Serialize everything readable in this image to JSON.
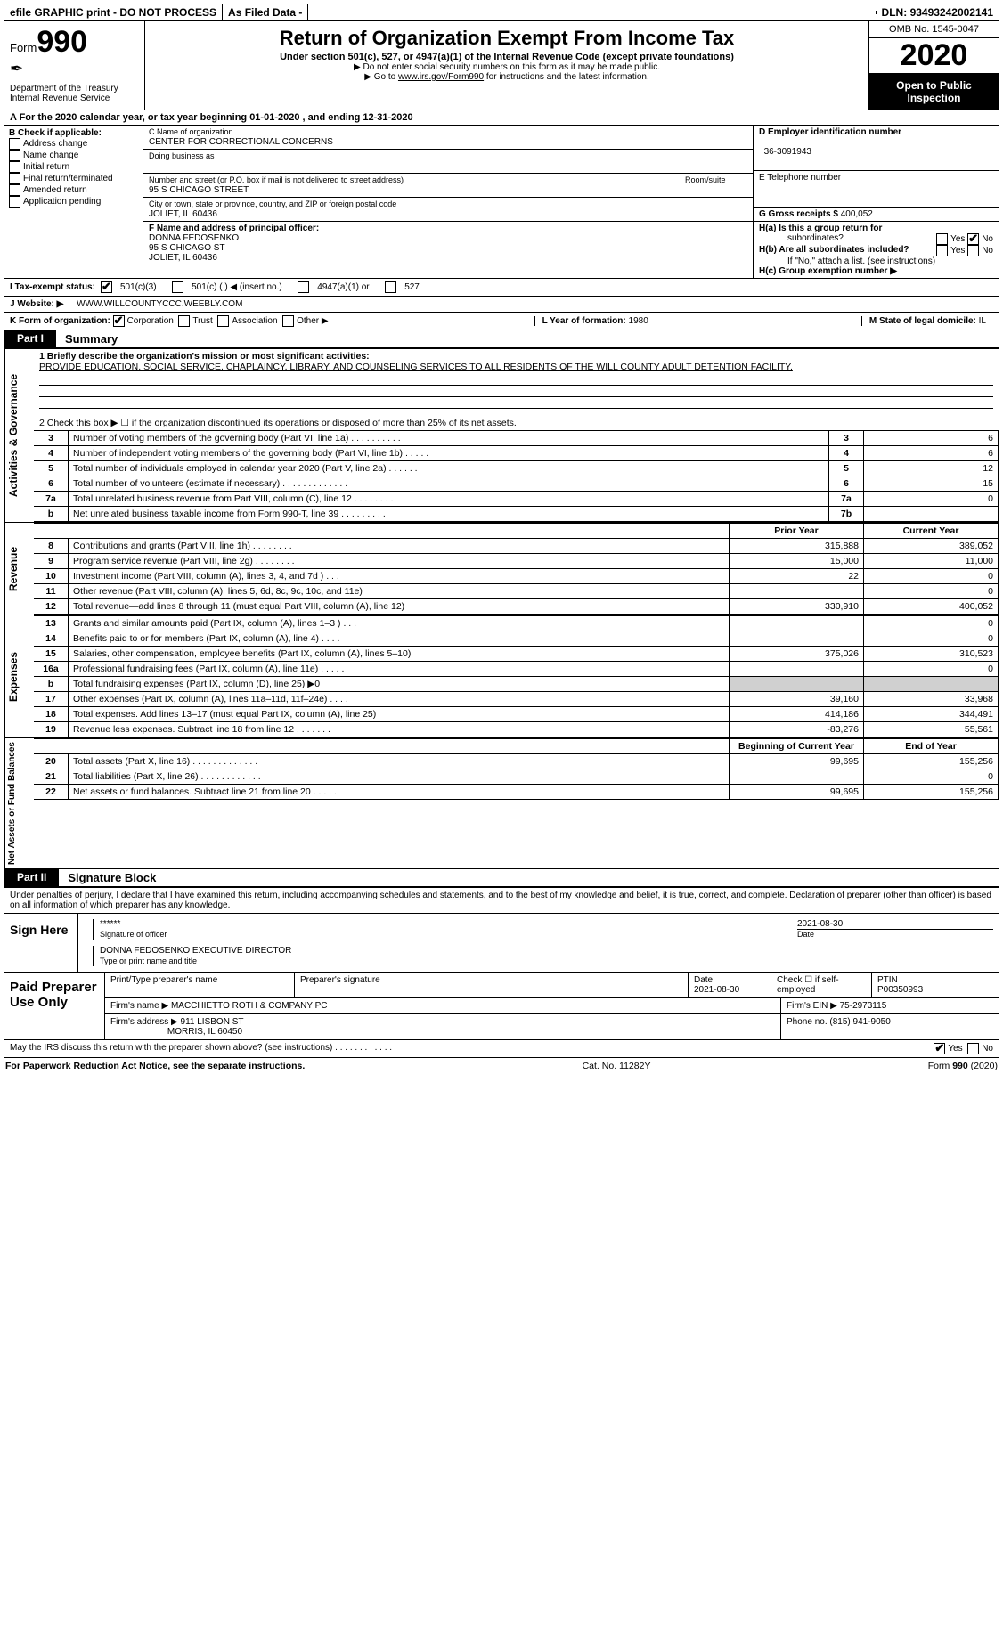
{
  "topbar": {
    "efile": "efile GRAPHIC print - DO NOT PROCESS",
    "asfiled": "As Filed Data -",
    "dln_label": "DLN:",
    "dln": "93493242002141"
  },
  "header": {
    "form_label": "Form",
    "form_number": "990",
    "dept": "Department of the Treasury\nInternal Revenue Service",
    "title": "Return of Organization Exempt From Income Tax",
    "sub": "Under section 501(c), 527, or 4947(a)(1) of the Internal Revenue Code (except private foundations)",
    "sub2a": "▶ Do not enter social security numbers on this form as it may be made public.",
    "sub2b_pre": "▶ Go to ",
    "sub2b_link": "www.irs.gov/Form990",
    "sub2b_post": " for instructions and the latest information.",
    "omb": "OMB No. 1545-0047",
    "year": "2020",
    "pub": "Open to Public Inspection"
  },
  "rowA": "A   For the 2020 calendar year, or tax year beginning 01-01-2020   , and ending 12-31-2020",
  "colB": {
    "title": "B Check if applicable:",
    "items": [
      "Address change",
      "Name change",
      "Initial return",
      "Final return/terminated",
      "Amended return",
      "Application pending"
    ]
  },
  "colC": {
    "name_lbl": "C Name of organization",
    "name": "CENTER FOR CORRECTIONAL CONCERNS",
    "dba_lbl": "Doing business as",
    "dba": "",
    "street_lbl": "Number and street (or P.O. box if mail is not delivered to street address)",
    "room_lbl": "Room/suite",
    "street": "95 S CHICAGO STREET",
    "city_lbl": "City or town, state or province, country, and ZIP or foreign postal code",
    "city": "JOLIET, IL  60436",
    "f_lbl": "F  Name and address of principal officer:",
    "f_name": "DONNA FEDOSENKO",
    "f_street": "95 S CHICAGO ST",
    "f_city": "JOLIET, IL  60436"
  },
  "colD": {
    "d_lbl": "D Employer identification number",
    "d_val": "36-3091943",
    "e_lbl": "E Telephone number",
    "e_val": "",
    "g_lbl": "G Gross receipts $",
    "g_val": "400,052",
    "ha_lbl": "H(a)  Is this a group return for",
    "ha_sub": "subordinates?",
    "hb_lbl": "H(b)  Are all subordinates included?",
    "hb_note": "If \"No,\" attach a list. (see instructions)",
    "hc_lbl": "H(c)  Group exemption number ▶",
    "yes": "Yes",
    "no": "No"
  },
  "rowI": {
    "label": "I   Tax-exempt status:",
    "opts": [
      "501(c)(3)",
      "501(c) (   ) ◀ (insert no.)",
      "4947(a)(1) or",
      "527"
    ]
  },
  "rowJ": {
    "label": "J   Website: ▶",
    "val": "WWW.WILLCOUNTYCCC.WEEBLY.COM"
  },
  "rowK": {
    "label": "K Form of organization:",
    "opts": [
      "Corporation",
      "Trust",
      "Association",
      "Other ▶"
    ],
    "l_lbl": "L Year of formation:",
    "l_val": "1980",
    "m_lbl": "M State of legal domicile:",
    "m_val": "IL"
  },
  "part1": {
    "tag": "Part I",
    "title": "Summary",
    "vlabel1": "Activities & Governance",
    "vlabel2": "Revenue",
    "vlabel3": "Expenses",
    "vlabel4": "Net Assets or Fund Balances",
    "line1_lbl": "1 Briefly describe the organization's mission or most significant activities:",
    "line1_txt": "PROVIDE EDUCATION, SOCIAL SERVICE, CHAPLAINCY, LIBRARY, AND COUNSELING SERVICES TO ALL RESIDENTS OF THE WILL COUNTY ADULT DETENTION FACILITY.",
    "line2": "2   Check this box ▶ ☐ if the organization discontinued its operations or disposed of more than 25% of its net assets.",
    "rows_a": [
      {
        "n": "3",
        "d": "Number of voting members of the governing body (Part VI, line 1a)   .    .    .    .    .    .    .    .    .    .",
        "k": "3",
        "v": "6"
      },
      {
        "n": "4",
        "d": "Number of independent voting members of the governing body (Part VI, line 1b)    .    .    .    .    .",
        "k": "4",
        "v": "6"
      },
      {
        "n": "5",
        "d": "Total number of individuals employed in calendar year 2020 (Part V, line 2a)    .    .    .    .    .    .",
        "k": "5",
        "v": "12"
      },
      {
        "n": "6",
        "d": "Total number of volunteers (estimate if necessary)    .    .    .    .    .    .    .    .    .    .    .    .    .",
        "k": "6",
        "v": "15"
      },
      {
        "n": "7a",
        "d": "Total unrelated business revenue from Part VIII, column (C), line 12   .    .    .    .    .    .    .    .",
        "k": "7a",
        "v": "0"
      },
      {
        "n": "b",
        "d": "Net unrelated business taxable income from Form 990-T, line 39    .    .    .    .    .    .    .    .    .",
        "k": "7b",
        "v": ""
      }
    ],
    "hdr_prior": "Prior Year",
    "hdr_curr": "Current Year",
    "rows_rev": [
      {
        "n": "8",
        "d": "Contributions and grants (Part VIII, line 1h)   .    .    .    .    .    .    .    .",
        "p": "315,888",
        "c": "389,052"
      },
      {
        "n": "9",
        "d": "Program service revenue (Part VIII, line 2g)   .    .    .    .    .    .    .    .",
        "p": "15,000",
        "c": "11,000"
      },
      {
        "n": "10",
        "d": "Investment income (Part VIII, column (A), lines 3, 4, and 7d )    .    .    .",
        "p": "22",
        "c": "0"
      },
      {
        "n": "11",
        "d": "Other revenue (Part VIII, column (A), lines 5, 6d, 8c, 9c, 10c, and 11e)",
        "p": "",
        "c": "0"
      },
      {
        "n": "12",
        "d": "Total revenue—add lines 8 through 11 (must equal Part VIII, column (A), line 12)",
        "p": "330,910",
        "c": "400,052"
      }
    ],
    "rows_exp": [
      {
        "n": "13",
        "d": "Grants and similar amounts paid (Part IX, column (A), lines 1–3 )   .    .    .",
        "p": "",
        "c": "0"
      },
      {
        "n": "14",
        "d": "Benefits paid to or for members (Part IX, column (A), line 4)   .    .    .    .",
        "p": "",
        "c": "0"
      },
      {
        "n": "15",
        "d": "Salaries, other compensation, employee benefits (Part IX, column (A), lines 5–10)",
        "p": "375,026",
        "c": "310,523"
      },
      {
        "n": "16a",
        "d": "Professional fundraising fees (Part IX, column (A), line 11e)    .    .    .    .    .",
        "p": "",
        "c": "0"
      },
      {
        "n": "b",
        "d": "Total fundraising expenses (Part IX, column (D), line 25) ▶0",
        "p": "grey",
        "c": "grey"
      },
      {
        "n": "17",
        "d": "Other expenses (Part IX, column (A), lines 11a–11d, 11f–24e)   .    .    .    .",
        "p": "39,160",
        "c": "33,968"
      },
      {
        "n": "18",
        "d": "Total expenses. Add lines 13–17 (must equal Part IX, column (A), line 25)",
        "p": "414,186",
        "c": "344,491"
      },
      {
        "n": "19",
        "d": "Revenue less expenses. Subtract line 18 from line 12   .    .    .    .    .    .    .",
        "p": "-83,276",
        "c": "55,561"
      }
    ],
    "hdr_beg": "Beginning of Current Year",
    "hdr_end": "End of Year",
    "rows_na": [
      {
        "n": "20",
        "d": "Total assets (Part X, line 16)   .    .    .    .    .    .    .    .    .    .    .    .    .",
        "p": "99,695",
        "c": "155,256"
      },
      {
        "n": "21",
        "d": "Total liabilities (Part X, line 26)   .    .    .    .    .    .    .    .    .    .    .    .",
        "p": "",
        "c": "0"
      },
      {
        "n": "22",
        "d": "Net assets or fund balances. Subtract line 21 from line 20   .    .    .    .    .",
        "p": "99,695",
        "c": "155,256"
      }
    ]
  },
  "part2": {
    "tag": "Part II",
    "title": "Signature Block",
    "perjury": "Under penalties of perjury, I declare that I have examined this return, including accompanying schedules and statements, and to the best of my knowledge and belief, it is true, correct, and complete. Declaration of preparer (other than officer) is based on all information of which preparer has any knowledge.",
    "sign_here": "Sign Here",
    "stars": "******",
    "sig_officer": "Signature of officer",
    "sig_date": "2021-08-30",
    "date_lbl": "Date",
    "name_title": "DONNA FEDOSENKO  EXECUTIVE DIRECTOR",
    "name_title_lbl": "Type or print name and title",
    "paid": "Paid Preparer Use Only",
    "p_name_lbl": "Print/Type preparer's name",
    "p_sig_lbl": "Preparer's signature",
    "p_date_lbl": "Date",
    "p_date": "2021-08-30",
    "p_self": "Check ☐ if self-employed",
    "ptin_lbl": "PTIN",
    "ptin": "P00350993",
    "firm_name_lbl": "Firm's name    ▶",
    "firm_name": "MACCHIETTO ROTH & COMPANY PC",
    "firm_ein_lbl": "Firm's EIN ▶",
    "firm_ein": "75-2973115",
    "firm_addr_lbl": "Firm's address ▶",
    "firm_addr1": "911 LISBON ST",
    "firm_addr2": "MORRIS, IL  60450",
    "phone_lbl": "Phone no.",
    "phone": "(815) 941-9050",
    "discuss": "May the IRS discuss this return with the preparer shown above? (see instructions)    .    .    .    .    .    .    .    .    .    .    .    .",
    "yes": "Yes",
    "no": "No"
  },
  "footer": {
    "left": "For Paperwork Reduction Act Notice, see the separate instructions.",
    "mid": "Cat. No. 11282Y",
    "right_a": "Form ",
    "right_b": "990",
    "right_c": " (2020)"
  }
}
